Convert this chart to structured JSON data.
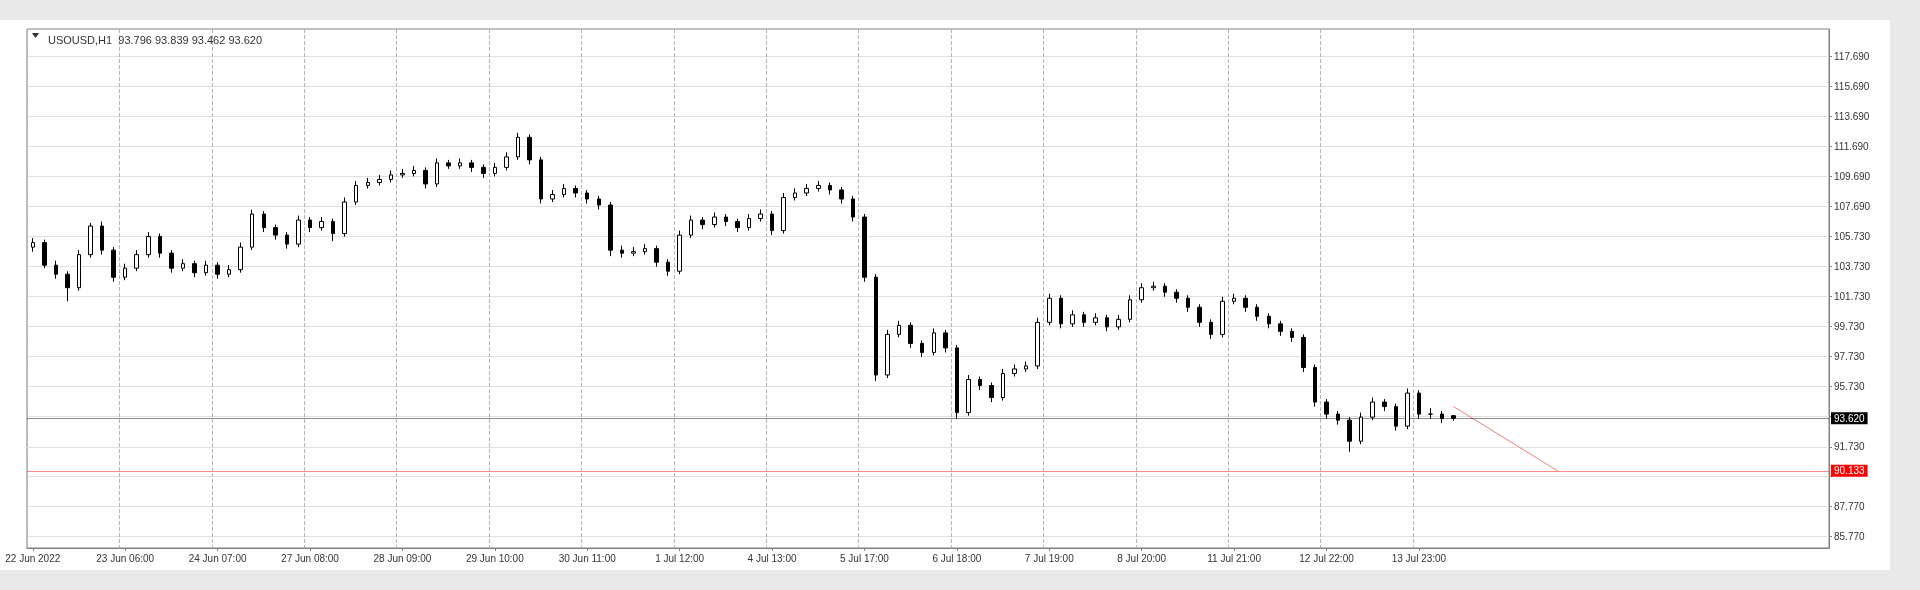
{
  "chart_data": {
    "type": "candlestick",
    "title": "USOUSD,H1  93.796 93.839 93.462 93.620",
    "color": "#000000",
    "grid": true,
    "categories": [
      "22 Jun 2022",
      null,
      null,
      null,
      null,
      null,
      null,
      null,
      "23 Jun 06:00",
      null,
      null,
      null,
      null,
      null,
      null,
      null,
      "24 Jun 07:00",
      null,
      null,
      null,
      null,
      null,
      null,
      null,
      "27 Jun 08:00",
      null,
      null,
      null,
      null,
      null,
      null,
      null,
      "28 Jun 09:00",
      null,
      null,
      null,
      null,
      null,
      null,
      null,
      "29 Jun 10:00",
      null,
      null,
      null,
      null,
      null,
      null,
      null,
      "30 Jun 11:00",
      null,
      null,
      null,
      null,
      null,
      null,
      null,
      "1 Jul 12:00",
      null,
      null,
      null,
      null,
      null,
      null,
      null,
      "4 Jul 13:00",
      null,
      null,
      null,
      null,
      null,
      null,
      null,
      "5 Jul 17:00",
      null,
      null,
      null,
      null,
      null,
      null,
      null,
      "6 Jul 18:00",
      null,
      null,
      null,
      null,
      null,
      null,
      null,
      "7 Jul 19:00",
      null,
      null,
      null,
      null,
      null,
      null,
      null,
      "8 Jul 20:00",
      null,
      null,
      null,
      null,
      null,
      null,
      null,
      "11 Jul 21:00",
      null,
      null,
      null,
      null,
      null,
      null,
      null,
      "12 Jul 22:00",
      null,
      null,
      null,
      null,
      null,
      null,
      null,
      "13 Jul 23:00",
      null,
      null,
      null,
      null,
      null,
      null,
      null,
      null,
      null,
      null,
      null,
      null,
      null,
      null,
      null,
      null,
      null,
      null,
      null,
      null,
      null,
      null,
      null,
      null,
      null,
      null,
      null,
      null,
      null,
      null,
      null,
      null,
      null,
      null,
      null
    ],
    "ohlc": [
      [
        105.0,
        105.6,
        104.7,
        105.3
      ],
      [
        105.3,
        105.5,
        103.6,
        103.8
      ],
      [
        103.8,
        104.1,
        102.9,
        103.2
      ],
      [
        103.2,
        103.4,
        101.4,
        102.3
      ],
      [
        102.3,
        104.8,
        102.1,
        104.5
      ],
      [
        104.5,
        106.6,
        104.3,
        106.4
      ],
      [
        106.4,
        106.7,
        104.5,
        104.8
      ],
      [
        104.8,
        105.0,
        102.7,
        103.0
      ],
      [
        103.0,
        103.9,
        102.8,
        103.6
      ],
      [
        103.6,
        104.8,
        103.4,
        104.5
      ],
      [
        104.5,
        106.0,
        104.3,
        105.7
      ],
      [
        105.7,
        105.9,
        104.3,
        104.6
      ],
      [
        104.6,
        104.8,
        103.3,
        103.6
      ],
      [
        103.6,
        104.2,
        103.4,
        103.9
      ],
      [
        103.9,
        104.1,
        103.0,
        103.3
      ],
      [
        103.3,
        104.1,
        103.1,
        103.8
      ],
      [
        103.8,
        104.0,
        102.9,
        103.2
      ],
      [
        103.2,
        103.8,
        103.0,
        103.5
      ],
      [
        103.5,
        105.3,
        103.3,
        105.0
      ],
      [
        105.0,
        107.5,
        104.8,
        107.2
      ],
      [
        107.2,
        107.4,
        106.0,
        106.3
      ],
      [
        106.3,
        106.5,
        105.5,
        105.8
      ],
      [
        105.8,
        106.0,
        104.9,
        105.2
      ],
      [
        105.2,
        107.1,
        105.0,
        106.8
      ],
      [
        106.8,
        107.0,
        106.0,
        106.3
      ],
      [
        106.3,
        107.0,
        106.1,
        106.7
      ],
      [
        106.7,
        106.9,
        105.4,
        105.9
      ],
      [
        105.9,
        108.3,
        105.7,
        108.0
      ],
      [
        108.0,
        109.4,
        107.8,
        109.1
      ],
      [
        109.1,
        109.6,
        108.9,
        109.3
      ],
      [
        109.3,
        109.8,
        109.1,
        109.5
      ],
      [
        109.5,
        110.1,
        109.3,
        109.8
      ],
      [
        109.8,
        110.2,
        109.6,
        109.9
      ],
      [
        109.9,
        110.4,
        109.7,
        110.1
      ],
      [
        110.1,
        110.3,
        108.9,
        109.2
      ],
      [
        109.2,
        110.9,
        109.0,
        110.6
      ],
      [
        110.6,
        110.8,
        110.2,
        110.4
      ],
      [
        110.4,
        110.9,
        110.2,
        110.6
      ],
      [
        110.6,
        110.8,
        110.0,
        110.3
      ],
      [
        110.3,
        110.5,
        109.6,
        109.9
      ],
      [
        109.9,
        110.6,
        109.7,
        110.3
      ],
      [
        110.3,
        111.3,
        110.1,
        111.0
      ],
      [
        111.0,
        112.6,
        110.8,
        112.3
      ],
      [
        112.3,
        112.5,
        110.5,
        110.8
      ],
      [
        110.8,
        111.0,
        107.9,
        108.2
      ],
      [
        108.2,
        108.8,
        108.0,
        108.5
      ],
      [
        108.5,
        109.2,
        108.3,
        108.9
      ],
      [
        108.9,
        109.1,
        108.3,
        108.6
      ],
      [
        108.6,
        108.8,
        107.9,
        108.2
      ],
      [
        108.2,
        108.4,
        107.5,
        107.8
      ],
      [
        107.8,
        108.0,
        104.4,
        104.8
      ],
      [
        104.8,
        105.1,
        104.3,
        104.6
      ],
      [
        104.6,
        105.0,
        104.4,
        104.7
      ],
      [
        104.7,
        105.2,
        104.5,
        104.9
      ],
      [
        104.9,
        105.1,
        103.7,
        104.0
      ],
      [
        104.0,
        104.2,
        103.1,
        103.4
      ],
      [
        103.4,
        106.1,
        103.2,
        105.8
      ],
      [
        105.8,
        107.1,
        105.6,
        106.8
      ],
      [
        106.8,
        107.0,
        106.2,
        106.5
      ],
      [
        106.5,
        107.3,
        106.3,
        107.0
      ],
      [
        107.0,
        107.2,
        106.4,
        106.7
      ],
      [
        106.7,
        106.9,
        106.0,
        106.3
      ],
      [
        106.3,
        107.2,
        106.1,
        106.9
      ],
      [
        106.9,
        107.5,
        106.7,
        107.2
      ],
      [
        107.2,
        107.4,
        105.8,
        106.1
      ],
      [
        106.1,
        108.6,
        105.9,
        108.3
      ],
      [
        108.3,
        108.9,
        108.1,
        108.6
      ],
      [
        108.6,
        109.2,
        108.4,
        108.9
      ],
      [
        108.9,
        109.4,
        108.7,
        109.1
      ],
      [
        109.1,
        109.3,
        108.5,
        108.8
      ],
      [
        108.8,
        109.0,
        107.9,
        108.2
      ],
      [
        108.2,
        108.4,
        106.7,
        107.0
      ],
      [
        107.0,
        107.2,
        102.7,
        103.0
      ],
      [
        103.0,
        103.2,
        96.1,
        96.5
      ],
      [
        96.5,
        99.5,
        96.3,
        99.2
      ],
      [
        99.2,
        100.1,
        99.0,
        99.8
      ],
      [
        99.8,
        100.0,
        98.3,
        98.6
      ],
      [
        98.6,
        98.8,
        97.7,
        98.0
      ],
      [
        98.0,
        99.6,
        97.8,
        99.3
      ],
      [
        99.3,
        99.5,
        98.0,
        98.3
      ],
      [
        98.3,
        98.5,
        93.6,
        94.0
      ],
      [
        94.0,
        96.5,
        93.8,
        96.2
      ],
      [
        96.2,
        96.4,
        95.5,
        95.8
      ],
      [
        95.8,
        96.0,
        94.7,
        95.0
      ],
      [
        95.0,
        96.9,
        94.8,
        96.6
      ],
      [
        96.6,
        97.2,
        96.4,
        96.9
      ],
      [
        96.9,
        97.4,
        96.7,
        97.1
      ],
      [
        97.1,
        100.3,
        96.9,
        100.0
      ],
      [
        100.0,
        101.9,
        99.8,
        101.6
      ],
      [
        101.6,
        101.8,
        99.6,
        99.9
      ],
      [
        99.9,
        100.8,
        99.7,
        100.5
      ],
      [
        100.5,
        100.7,
        99.7,
        100.0
      ],
      [
        100.0,
        100.6,
        99.8,
        100.3
      ],
      [
        100.3,
        100.5,
        99.4,
        99.7
      ],
      [
        99.7,
        100.5,
        99.5,
        100.2
      ],
      [
        100.2,
        101.8,
        100.0,
        101.5
      ],
      [
        101.5,
        102.6,
        101.3,
        102.3
      ],
      [
        102.3,
        102.7,
        102.1,
        102.4
      ],
      [
        102.4,
        102.6,
        101.7,
        102.0
      ],
      [
        102.0,
        102.2,
        101.3,
        101.6
      ],
      [
        101.6,
        101.8,
        100.7,
        101.0
      ],
      [
        101.0,
        101.2,
        99.7,
        100.0
      ],
      [
        100.0,
        100.2,
        98.9,
        99.2
      ],
      [
        99.2,
        101.7,
        99.0,
        101.4
      ],
      [
        101.4,
        101.9,
        101.2,
        101.6
      ],
      [
        101.6,
        101.8,
        100.7,
        101.0
      ],
      [
        101.0,
        101.2,
        100.1,
        100.4
      ],
      [
        100.4,
        100.6,
        99.6,
        99.9
      ],
      [
        99.9,
        100.1,
        99.1,
        99.4
      ],
      [
        99.4,
        99.6,
        98.7,
        99.0
      ],
      [
        99.0,
        99.2,
        96.7,
        97.0
      ],
      [
        97.0,
        97.2,
        94.4,
        94.7
      ],
      [
        94.7,
        94.9,
        93.6,
        93.9
      ],
      [
        93.9,
        94.1,
        93.2,
        93.5
      ],
      [
        93.5,
        93.7,
        91.4,
        92.1
      ],
      [
        92.1,
        94.0,
        91.9,
        93.7
      ],
      [
        93.7,
        95.0,
        93.5,
        94.7
      ],
      [
        94.7,
        94.9,
        94.1,
        94.4
      ],
      [
        94.4,
        94.6,
        92.8,
        93.1
      ],
      [
        93.1,
        95.6,
        92.9,
        95.3
      ],
      [
        95.3,
        95.5,
        93.6,
        93.9
      ],
      [
        93.9,
        94.3,
        93.6,
        93.9
      ],
      [
        93.9,
        94.1,
        93.3,
        93.6
      ],
      [
        93.796,
        93.839,
        93.462,
        93.62
      ],
      null,
      null,
      null,
      null,
      null,
      null,
      null,
      null,
      null,
      null,
      null,
      null,
      null,
      null,
      null,
      null,
      null,
      null,
      null,
      null,
      null,
      null,
      null,
      null,
      null,
      null,
      null,
      null,
      null,
      null,
      null,
      null
    ],
    "series": [
      {
        "type": "line",
        "color": "#f08080",
        "values": [
          null,
          null,
          null,
          null,
          null,
          null,
          null,
          null,
          null,
          null,
          null,
          null,
          null,
          null,
          null,
          null,
          null,
          null,
          null,
          null,
          null,
          null,
          null,
          null,
          null,
          null,
          null,
          null,
          null,
          null,
          null,
          null,
          null,
          null,
          null,
          null,
          null,
          null,
          null,
          null,
          null,
          null,
          null,
          null,
          null,
          null,
          null,
          null,
          null,
          null,
          null,
          null,
          null,
          null,
          null,
          null,
          null,
          null,
          null,
          null,
          null,
          null,
          null,
          null,
          null,
          null,
          null,
          null,
          null,
          null,
          null,
          null,
          null,
          null,
          null,
          null,
          null,
          null,
          null,
          null,
          null,
          null,
          null,
          null,
          null,
          null,
          null,
          null,
          null,
          null,
          null,
          null,
          null,
          null,
          null,
          null,
          null,
          null,
          null,
          null,
          null,
          null,
          null,
          null,
          null,
          null,
          null,
          null,
          null,
          null,
          null,
          null,
          null,
          null,
          null,
          null,
          null,
          null,
          null,
          null,
          null,
          null,
          null,
          94.4,
          null,
          null,
          null,
          null,
          null,
          null,
          null,
          null,
          90.13,
          null,
          null,
          null,
          null,
          null,
          null,
          null,
          null,
          null,
          null,
          null,
          null,
          null,
          null,
          null,
          null,
          null,
          null,
          null,
          null,
          null,
          null,
          null
        ]
      }
    ],
    "ylim": [
      85.0,
      119.5
    ],
    "yticks": [
      {
        "value": 85.77,
        "label": "85.770"
      },
      {
        "value": 87.77,
        "label": "87.770"
      },
      {
        "value": 89.77,
        "label": null
      },
      {
        "value": 91.73,
        "label": "91.730"
      },
      {
        "value": 93.73,
        "label": null
      },
      {
        "value": 95.73,
        "label": "95.730"
      },
      {
        "value": 97.73,
        "label": "97.730"
      },
      {
        "value": 99.73,
        "label": "99.730"
      },
      {
        "value": 101.73,
        "label": "101.730"
      },
      {
        "value": 103.73,
        "label": "103.730"
      },
      {
        "value": 105.73,
        "label": "105.730"
      },
      {
        "value": 107.69,
        "label": "107.690"
      },
      {
        "value": 109.69,
        "label": "109.690"
      },
      {
        "value": 111.69,
        "label": "111.690"
      },
      {
        "value": 113.69,
        "label": "113.690"
      },
      {
        "value": 115.69,
        "label": "115.690"
      },
      {
        "value": 117.69,
        "label": "117.690"
      }
    ],
    "ref_lines": [
      {
        "axis": "y",
        "value": 93.62,
        "label": "93.620",
        "color": "#000000"
      },
      {
        "axis": "y",
        "value": 90.133,
        "label": "90.133",
        "color": "#ff0000"
      }
    ]
  }
}
